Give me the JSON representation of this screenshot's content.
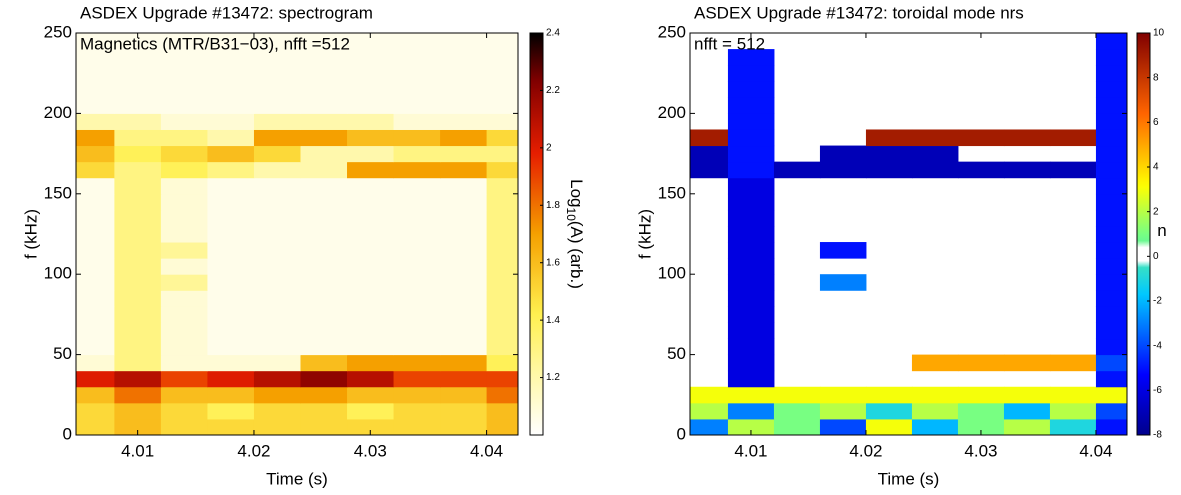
{
  "chart_data": [
    {
      "type": "heatmap",
      "title": "ASDEX Upgrade #13472: spectrogram",
      "annotation": "Magnetics (MTR/B31−03), nfft =512",
      "xlabel": "Time (s)",
      "ylabel": "f (kHz)",
      "xlim": [
        4.0047,
        4.0427
      ],
      "xticks": [
        4.01,
        4.02,
        4.03,
        4.04
      ],
      "ylim": [
        0,
        250
      ],
      "yticks": [
        0,
        50,
        100,
        150,
        200,
        250
      ],
      "x_bins": [
        4.0047,
        4.008,
        4.012,
        4.016,
        4.02,
        4.024,
        4.028,
        4.032,
        4.036,
        4.04,
        4.0427
      ],
      "y_bins": [
        0,
        10,
        20,
        30,
        40,
        50,
        60,
        70,
        80,
        90,
        100,
        110,
        120,
        130,
        140,
        150,
        160,
        170,
        180,
        190,
        200,
        210,
        220,
        230,
        240,
        250
      ],
      "colormap": "hot_r",
      "colorbar": {
        "clim": [
          1.0,
          2.4
        ],
        "ticks": [
          1.2,
          1.4,
          1.6,
          1.8,
          2,
          2.2,
          2.4
        ],
        "label": [
          "Log",
          "10",
          "(A) (arb.)"
        ]
      },
      "z": [
        [
          1.5,
          1.6,
          1.5,
          1.5,
          1.5,
          1.5,
          1.5,
          1.5,
          1.5,
          1.6
        ],
        [
          1.5,
          1.6,
          1.5,
          1.4,
          1.5,
          1.5,
          1.4,
          1.5,
          1.5,
          1.6
        ],
        [
          1.6,
          1.8,
          1.6,
          1.6,
          1.7,
          1.7,
          1.6,
          1.6,
          1.6,
          1.8
        ],
        [
          2.0,
          2.1,
          1.9,
          2.0,
          2.1,
          2.2,
          2.1,
          1.9,
          1.9,
          1.9
        ],
        [
          1.1,
          1.3,
          1.1,
          1.1,
          1.1,
          1.6,
          1.7,
          1.7,
          1.7,
          1.4
        ],
        [
          1.05,
          1.3,
          1.1,
          1.05,
          1.05,
          1.05,
          1.05,
          1.05,
          1.05,
          1.3
        ],
        [
          1.05,
          1.3,
          1.1,
          1.05,
          1.05,
          1.05,
          1.05,
          1.05,
          1.05,
          1.3
        ],
        [
          1.05,
          1.3,
          1.1,
          1.05,
          1.05,
          1.05,
          1.05,
          1.05,
          1.05,
          1.3
        ],
        [
          1.05,
          1.3,
          1.1,
          1.05,
          1.05,
          1.05,
          1.05,
          1.05,
          1.05,
          1.3
        ],
        [
          1.05,
          1.3,
          1.25,
          1.05,
          1.05,
          1.05,
          1.05,
          1.05,
          1.05,
          1.3
        ],
        [
          1.05,
          1.3,
          1.1,
          1.05,
          1.05,
          1.05,
          1.05,
          1.05,
          1.05,
          1.3
        ],
        [
          1.05,
          1.3,
          1.25,
          1.05,
          1.05,
          1.05,
          1.05,
          1.05,
          1.05,
          1.3
        ],
        [
          1.05,
          1.3,
          1.1,
          1.05,
          1.05,
          1.05,
          1.05,
          1.05,
          1.05,
          1.3
        ],
        [
          1.05,
          1.3,
          1.1,
          1.05,
          1.05,
          1.05,
          1.05,
          1.05,
          1.05,
          1.3
        ],
        [
          1.05,
          1.3,
          1.1,
          1.05,
          1.05,
          1.05,
          1.05,
          1.05,
          1.05,
          1.3
        ],
        [
          1.05,
          1.3,
          1.1,
          1.05,
          1.05,
          1.05,
          1.05,
          1.05,
          1.05,
          1.3
        ],
        [
          1.5,
          1.3,
          1.4,
          1.3,
          1.2,
          1.2,
          1.7,
          1.7,
          1.7,
          1.5
        ],
        [
          1.6,
          1.4,
          1.5,
          1.6,
          1.5,
          1.2,
          1.2,
          1.3,
          1.3,
          1.3
        ],
        [
          1.7,
          1.3,
          1.3,
          1.2,
          1.7,
          1.7,
          1.6,
          1.6,
          1.7,
          1.5
        ],
        [
          1.2,
          1.2,
          1.1,
          1.1,
          1.2,
          1.2,
          1.2,
          1.1,
          1.1,
          1.1
        ],
        [
          1.05,
          1.05,
          1.05,
          1.05,
          1.05,
          1.05,
          1.05,
          1.05,
          1.05,
          1.05
        ],
        [
          1.05,
          1.05,
          1.05,
          1.05,
          1.05,
          1.05,
          1.05,
          1.05,
          1.05,
          1.05
        ],
        [
          1.05,
          1.05,
          1.05,
          1.05,
          1.05,
          1.05,
          1.05,
          1.05,
          1.05,
          1.05
        ],
        [
          1.05,
          1.05,
          1.05,
          1.05,
          1.05,
          1.05,
          1.05,
          1.05,
          1.05,
          1.05
        ],
        [
          1.05,
          1.05,
          1.05,
          1.05,
          1.05,
          1.05,
          1.05,
          1.05,
          1.05,
          1.05
        ]
      ]
    },
    {
      "type": "heatmap",
      "title": "ASDEX Upgrade #13472: toroidal mode nrs",
      "annotation": "nfft = 512",
      "xlabel": "Time (s)",
      "ylabel": "f (kHz)",
      "xlim": [
        4.0047,
        4.0427
      ],
      "xticks": [
        4.01,
        4.02,
        4.03,
        4.04
      ],
      "ylim": [
        0,
        250
      ],
      "yticks": [
        0,
        50,
        100,
        150,
        200,
        250
      ],
      "x_bins": [
        4.0047,
        4.008,
        4.012,
        4.016,
        4.02,
        4.024,
        4.028,
        4.032,
        4.036,
        4.04,
        4.0427
      ],
      "y_bins": [
        0,
        10,
        20,
        30,
        40,
        50,
        60,
        70,
        80,
        90,
        100,
        110,
        120,
        130,
        140,
        150,
        160,
        170,
        180,
        190,
        200,
        210,
        220,
        230,
        240,
        250
      ],
      "colormap": "jet",
      "colorbar": {
        "clim": [
          -8,
          10
        ],
        "ticks": [
          -8,
          -6,
          -4,
          -2,
          0,
          2,
          4,
          6,
          8,
          10
        ],
        "label": [
          "n"
        ]
      },
      "z": [
        [
          -3,
          2,
          1,
          -4,
          3,
          -2,
          1,
          2,
          -1,
          -5
        ],
        [
          2,
          -3,
          1,
          2,
          -1,
          2,
          1,
          -2,
          2,
          -4
        ],
        [
          3,
          3,
          3,
          3,
          3,
          3,
          3,
          3,
          3,
          3
        ],
        [
          null,
          -6,
          null,
          null,
          null,
          null,
          null,
          null,
          null,
          -5
        ],
        [
          null,
          -6,
          null,
          null,
          null,
          5,
          5,
          5,
          5,
          -4
        ],
        [
          null,
          -6,
          null,
          null,
          null,
          null,
          null,
          null,
          null,
          -5
        ],
        [
          null,
          -6,
          null,
          null,
          null,
          null,
          null,
          null,
          null,
          -5
        ],
        [
          null,
          -6,
          null,
          null,
          null,
          null,
          null,
          null,
          null,
          -5
        ],
        [
          null,
          -6,
          null,
          null,
          null,
          null,
          null,
          null,
          null,
          -5
        ],
        [
          null,
          -6,
          null,
          -3,
          null,
          null,
          null,
          null,
          null,
          -5
        ],
        [
          null,
          -6,
          null,
          null,
          null,
          null,
          null,
          null,
          null,
          -5
        ],
        [
          null,
          -6,
          null,
          -5,
          null,
          null,
          null,
          null,
          null,
          -5
        ],
        [
          null,
          -6,
          null,
          null,
          null,
          null,
          null,
          null,
          null,
          -5
        ],
        [
          null,
          -6,
          null,
          null,
          null,
          null,
          null,
          null,
          null,
          -5
        ],
        [
          null,
          -6,
          null,
          null,
          null,
          null,
          null,
          null,
          null,
          -5
        ],
        [
          null,
          -6,
          null,
          null,
          null,
          null,
          null,
          null,
          null,
          -5
        ],
        [
          -7,
          -5,
          -7,
          -7,
          -7,
          -7,
          -7,
          -7,
          -7,
          -5
        ],
        [
          -7,
          -5,
          null,
          -7,
          -7,
          -7,
          null,
          null,
          null,
          -5
        ],
        [
          9,
          -5,
          null,
          null,
          9,
          9,
          9,
          9,
          9,
          -5
        ],
        [
          null,
          -5,
          null,
          null,
          null,
          null,
          null,
          null,
          null,
          -5
        ],
        [
          null,
          -5,
          null,
          null,
          null,
          null,
          null,
          null,
          null,
          -5
        ],
        [
          null,
          -5,
          null,
          null,
          null,
          null,
          null,
          null,
          null,
          -5
        ],
        [
          null,
          -5,
          null,
          null,
          null,
          null,
          null,
          null,
          null,
          -5
        ],
        [
          null,
          -5,
          null,
          null,
          null,
          null,
          null,
          null,
          null,
          -5
        ],
        [
          null,
          null,
          null,
          null,
          null,
          null,
          null,
          null,
          null,
          -5
        ]
      ]
    }
  ]
}
